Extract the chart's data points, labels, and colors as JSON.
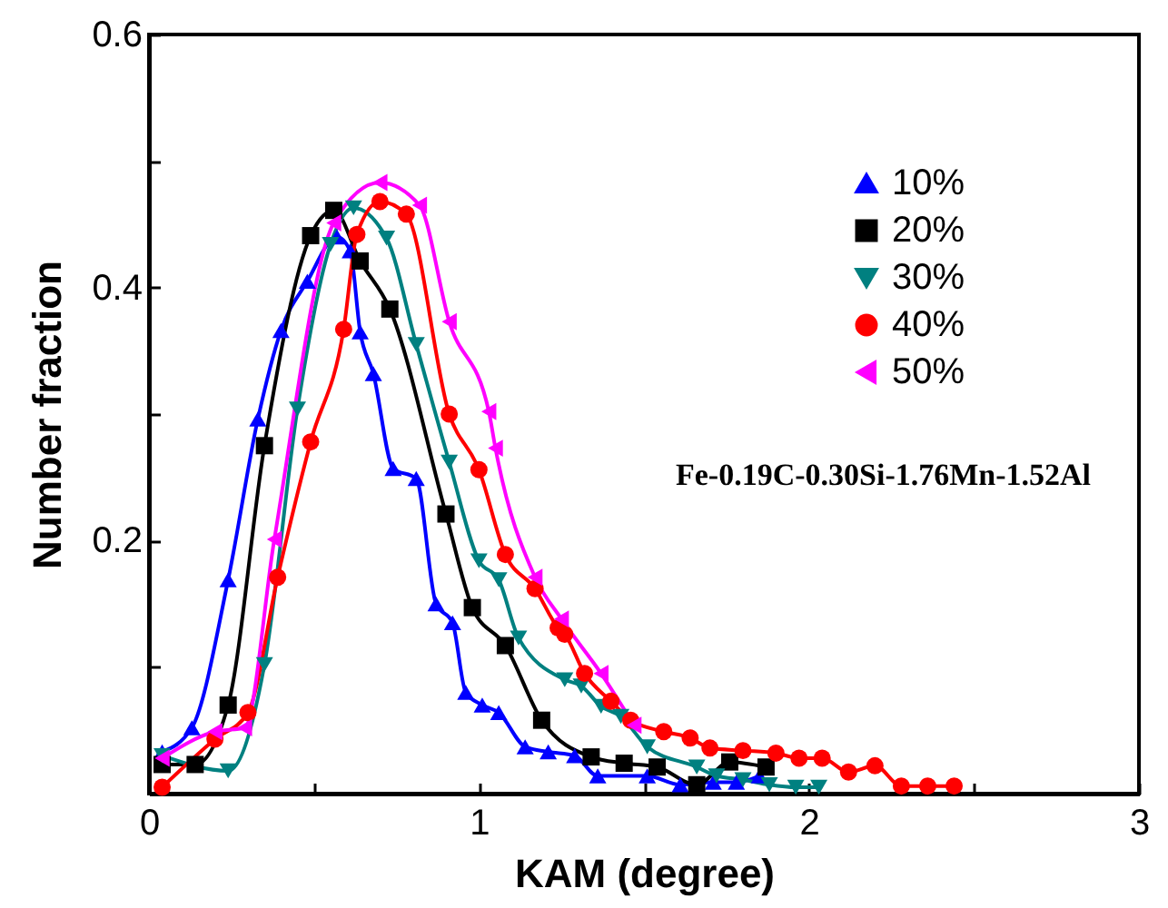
{
  "chart_data": {
    "type": "line",
    "xlabel": "KAM (degree)",
    "ylabel": "Number fraction",
    "annotations": [
      "Fe-0.19C-0.30Si-1.76Mn-1.52Al"
    ],
    "xlim": [
      0,
      3
    ],
    "xticks": [
      0,
      {
        "value": 0.5,
        "label": null
      },
      1,
      {
        "value": 1.5,
        "label": null
      },
      2,
      {
        "value": 2.5,
        "label": null
      },
      3
    ],
    "ylim": [
      0,
      0.6
    ],
    "yticks": [
      {
        "value": 0.1,
        "label": null
      },
      0.2,
      {
        "value": 0.3,
        "label": null
      },
      0.4,
      {
        "value": 0.5,
        "label": null
      },
      0.6
    ],
    "grid": false,
    "legend": "top right",
    "line_style": "solid",
    "series": [
      {
        "name": "10%",
        "color": "#0000ff",
        "marker": "triangle",
        "x": [
          0.04,
          0.13,
          0.24,
          0.33,
          0.4,
          0.48,
          0.57,
          0.61,
          0.64,
          0.68,
          0.74,
          0.81,
          0.87,
          0.92,
          0.96,
          1.01,
          1.06,
          1.14,
          1.21,
          1.29,
          1.36,
          1.51,
          1.61,
          1.71,
          1.78,
          1.85
        ],
        "values": [
          0.033,
          0.052,
          0.169,
          0.296,
          0.366,
          0.405,
          0.44,
          0.429,
          0.365,
          0.332,
          0.257,
          0.249,
          0.15,
          0.135,
          0.08,
          0.07,
          0.064,
          0.037,
          0.033,
          0.03,
          0.014,
          0.014,
          0.007,
          0.009,
          0.009,
          0.014
        ]
      },
      {
        "name": "20%",
        "color": "#000000",
        "marker": "square",
        "x": [
          0.04,
          0.14,
          0.24,
          0.35,
          0.49,
          0.56,
          0.64,
          0.73,
          0.9,
          0.98,
          1.08,
          1.19,
          1.34,
          1.44,
          1.54,
          1.66,
          1.76,
          1.87
        ],
        "values": [
          0.023,
          0.023,
          0.07,
          0.275,
          0.441,
          0.461,
          0.421,
          0.383,
          0.221,
          0.147,
          0.117,
          0.058,
          0.029,
          0.024,
          0.021,
          0.007,
          0.025,
          0.021
        ]
      },
      {
        "name": "30%",
        "color": "#008080",
        "marker": "triangle-down",
        "x": [
          0.04,
          0.24,
          0.35,
          0.45,
          0.55,
          0.62,
          0.72,
          0.81,
          0.91,
          1.0,
          1.06,
          1.12,
          1.26,
          1.31,
          1.37,
          1.43,
          1.51,
          1.66,
          1.72,
          1.8,
          1.88,
          1.96,
          2.03
        ],
        "values": [
          0.03,
          0.018,
          0.102,
          0.304,
          0.434,
          0.463,
          0.439,
          0.355,
          0.262,
          0.184,
          0.169,
          0.123,
          0.09,
          0.085,
          0.069,
          0.061,
          0.037,
          0.021,
          0.014,
          0.011,
          0.007,
          0.005,
          0.005
        ]
      },
      {
        "name": "40%",
        "color": "#ff0000",
        "marker": "circle",
        "x": [
          0.04,
          0.2,
          0.3,
          0.39,
          0.49,
          0.59,
          0.63,
          0.7,
          0.78,
          0.91,
          1.0,
          1.08,
          1.17,
          1.24,
          1.26,
          1.32,
          1.4,
          1.46,
          1.56,
          1.64,
          1.7,
          1.8,
          1.9,
          1.97,
          2.04,
          2.12,
          2.2,
          2.28,
          2.36,
          2.44
        ],
        "values": [
          0.005,
          0.043,
          0.064,
          0.171,
          0.278,
          0.367,
          0.442,
          0.468,
          0.458,
          0.3,
          0.256,
          0.189,
          0.162,
          0.131,
          0.126,
          0.095,
          0.073,
          0.058,
          0.049,
          0.044,
          0.036,
          0.034,
          0.032,
          0.028,
          0.028,
          0.017,
          0.022,
          0.006,
          0.006,
          0.006
        ]
      },
      {
        "name": "50%",
        "color": "#ff00ff",
        "marker": "triangle-left",
        "x": [
          0.04,
          0.2,
          0.29,
          0.38,
          0.56,
          0.7,
          0.82,
          0.91,
          1.03,
          1.05,
          1.17,
          1.25,
          1.37,
          1.47
        ],
        "values": [
          0.028,
          0.049,
          0.052,
          0.201,
          0.451,
          0.483,
          0.465,
          0.373,
          0.302,
          0.273,
          0.171,
          0.138,
          0.095,
          0.054
        ]
      }
    ]
  }
}
